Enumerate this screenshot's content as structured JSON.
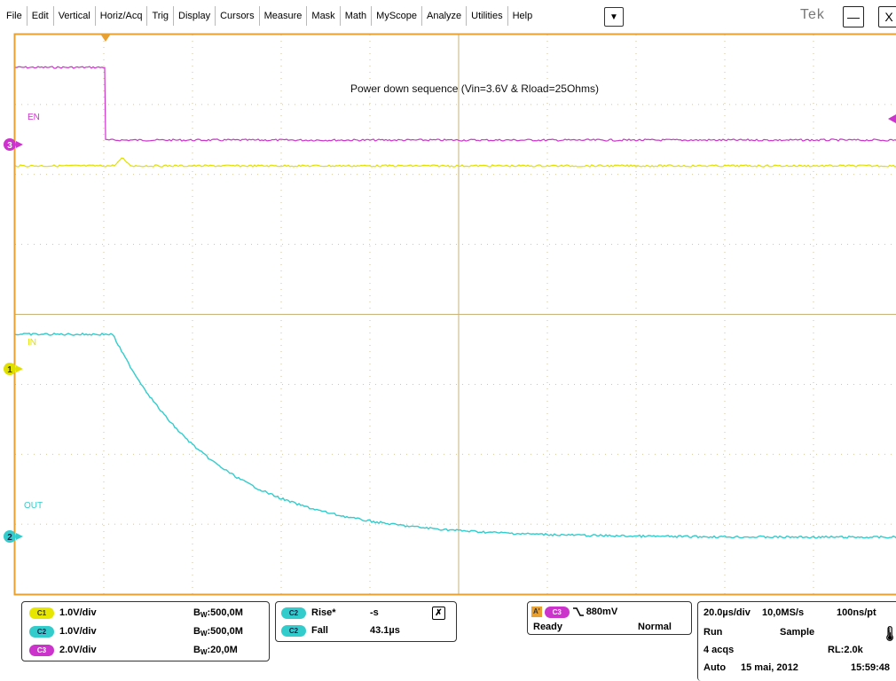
{
  "menu": {
    "items": [
      "File",
      "Edit",
      "Vertical",
      "Horiz/Acq",
      "Trig",
      "Display",
      "Cursors",
      "Measure",
      "Mask",
      "Math",
      "MyScope",
      "Analyze",
      "Utilities",
      "Help"
    ],
    "dropdown_glyph": "▼"
  },
  "window": {
    "brand": "Tek",
    "minimize_glyph": "—",
    "close_glyph": "X"
  },
  "scope": {
    "annotation": "Power down sequence (Vin=3.6V & Rload=25Ohms)",
    "label_en": "EN",
    "label_in": "IN",
    "label_out": "OUT",
    "marker_ch3": "3",
    "marker_ch1": "1",
    "marker_ch2": "2",
    "colors": {
      "grid": "#c8b27a",
      "border": "#e8a030",
      "ch1": "#e0e000",
      "ch2": "#33cccc",
      "ch3": "#cc33cc"
    }
  },
  "channels": [
    {
      "badge": "C1",
      "scale": "1.0V/div",
      "bw_prefix": "B",
      "bw_sub": "W",
      "bw": ":500,0M"
    },
    {
      "badge": "C2",
      "scale": "1.0V/div",
      "bw_prefix": "B",
      "bw_sub": "W",
      "bw": ":500,0M"
    },
    {
      "badge": "C3",
      "scale": "2.0V/div",
      "bw_prefix": "B",
      "bw_sub": "W",
      "bw": ":20,0M"
    }
  ],
  "measurements": [
    {
      "badge": "C2",
      "name": "Rise*",
      "value": "-s"
    },
    {
      "badge": "C2",
      "name": "Fall",
      "value": "43.1µs"
    }
  ],
  "trigger": {
    "a_badge": "A'",
    "source": "C3",
    "level": "880mV",
    "state": "Ready",
    "mode": "Normal"
  },
  "acquisition": {
    "timebase": "20.0µs/div",
    "sample_rate": "10,0MS/s",
    "resolution": "100ns/pt",
    "run_state": "Run",
    "acq_mode": "Sample",
    "acqs": "4 acqs",
    "record_length": "RL:2.0k",
    "trigger_mode": "Auto",
    "date": "15 mai, 2012",
    "time": "15:59:48"
  }
}
